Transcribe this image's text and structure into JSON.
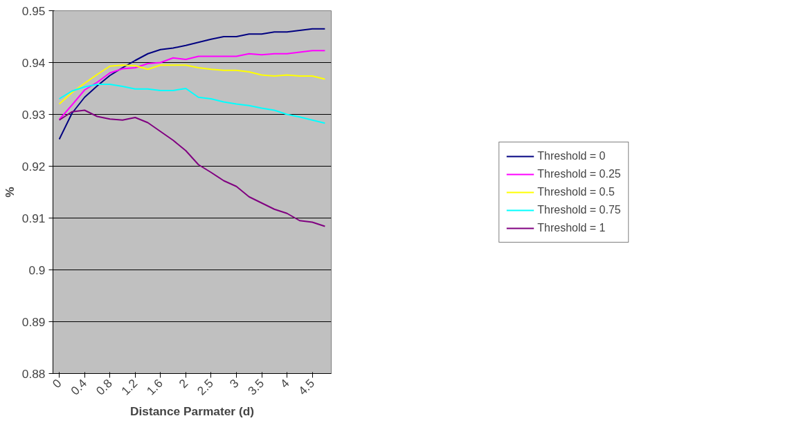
{
  "chart_data": {
    "type": "line",
    "xlabel": "Distance Parmater (d)",
    "ylabel": "%",
    "categories": [
      "0",
      null,
      "0.4",
      null,
      "0.8",
      null,
      "1.2",
      null,
      "1.6",
      null,
      "2",
      null,
      "2.5",
      null,
      "3",
      null,
      "3.5",
      null,
      "4",
      null,
      "4.5",
      null
    ],
    "ylim": [
      0.88,
      0.95
    ],
    "yticks": [
      0.88,
      0.89,
      0.9,
      0.91,
      0.92,
      0.93,
      0.94,
      0.95
    ],
    "grid": "y",
    "legend": "right",
    "marker": "none",
    "line_style": "solid",
    "series": [
      {
        "name": "Threshold = 0",
        "color": "#000080",
        "values": [
          0.9252,
          0.9302,
          0.9333,
          0.9355,
          0.9375,
          0.939,
          0.9404,
          0.9417,
          0.9425,
          0.9428,
          0.9433,
          0.9439,
          0.9445,
          0.945,
          0.945,
          0.9455,
          0.9455,
          0.9459,
          0.9459,
          0.9462,
          0.9465,
          0.9465
        ]
      },
      {
        "name": "Threshold = 0.25",
        "color": "#ff00ff",
        "values": [
          0.929,
          0.9318,
          0.9347,
          0.9362,
          0.938,
          0.9388,
          0.939,
          0.9398,
          0.94,
          0.9409,
          0.9406,
          0.9412,
          0.9412,
          0.9412,
          0.9412,
          0.9417,
          0.9415,
          0.9417,
          0.9417,
          0.942,
          0.9423,
          0.9423
        ]
      },
      {
        "name": "Threshold = 0.5",
        "color": "#ffff00",
        "values": [
          0.932,
          0.9342,
          0.936,
          0.9377,
          0.9393,
          0.9395,
          0.9394,
          0.9387,
          0.9395,
          0.9395,
          0.9395,
          0.939,
          0.9387,
          0.9385,
          0.9385,
          0.9382,
          0.9376,
          0.9374,
          0.9376,
          0.9374,
          0.9374,
          0.9368
        ]
      },
      {
        "name": "Threshold = 0.75",
        "color": "#00ffff",
        "values": [
          0.933,
          0.9345,
          0.9353,
          0.9358,
          0.9358,
          0.9354,
          0.9349,
          0.9349,
          0.9346,
          0.9346,
          0.935,
          0.9333,
          0.933,
          0.9324,
          0.932,
          0.9317,
          0.9312,
          0.9308,
          0.93,
          0.9295,
          0.9289,
          0.9283
        ]
      },
      {
        "name": "Threshold = 1",
        "color": "#800080",
        "values": [
          0.9289,
          0.9305,
          0.9308,
          0.9296,
          0.9291,
          0.9289,
          0.9294,
          0.9284,
          0.9267,
          0.925,
          0.923,
          0.9203,
          0.9188,
          0.9172,
          0.9161,
          0.9141,
          0.9129,
          0.9117,
          0.9109,
          0.9095,
          0.9092,
          0.9084
        ]
      }
    ]
  }
}
